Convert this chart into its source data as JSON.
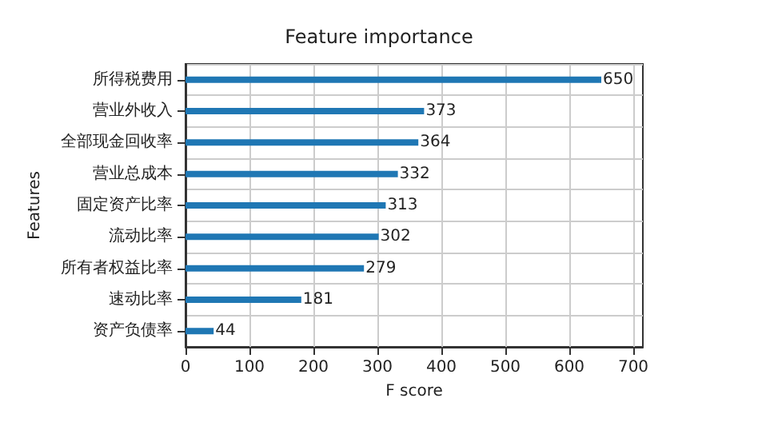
{
  "chart_data": {
    "type": "bar",
    "orientation": "horizontal",
    "title": "Feature importance",
    "xlabel": "F score",
    "ylabel": "Features",
    "categories": [
      "所得税费用",
      "营业外收入",
      "全部现金回收率",
      "营业总成本",
      "固定资产比率",
      "流动比率",
      "所有者权益比率",
      "速动比率",
      "资产负债率"
    ],
    "values": [
      650,
      373,
      364,
      332,
      313,
      302,
      279,
      181,
      44
    ],
    "color": "#1f77b4",
    "xlim": [
      0,
      715
    ],
    "xticks": [
      0,
      100,
      200,
      300,
      400,
      500,
      600,
      700
    ],
    "grid": true,
    "data_labels": true
  }
}
